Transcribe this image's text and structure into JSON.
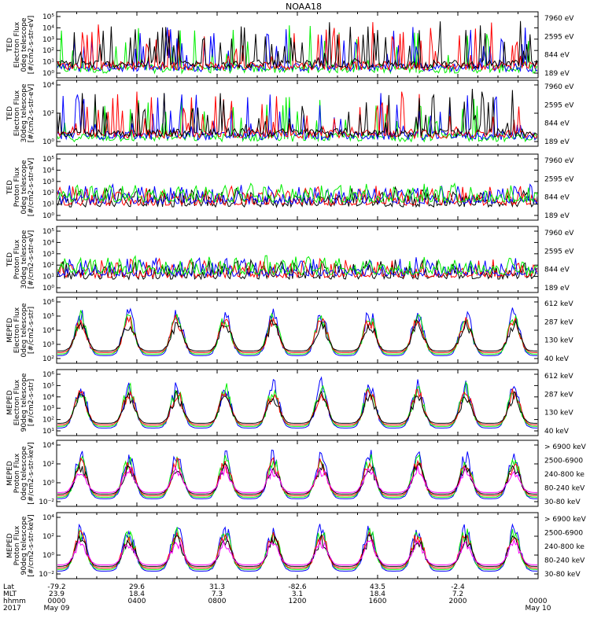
{
  "title": "NOAA18",
  "colors": {
    "black": "#000000",
    "red": "#ff0000",
    "green": "#00ee00",
    "blue": "#0000ff",
    "magenta": "#ff00ff"
  },
  "chart_data": [
    {
      "type": "line",
      "instrument": "TED",
      "ylabel": [
        "TED",
        "Electron Flux",
        "0deg telescope",
        "[#/cm2-s-str-eV]"
      ],
      "yticks": [
        "10⁰",
        "10¹",
        "10²",
        "10³",
        "10⁴",
        "10⁵"
      ],
      "legend": [
        {
          "label": "7960 eV",
          "color": "#000000"
        },
        {
          "label": "2595 eV",
          "color": "#ff0000"
        },
        {
          "label": "844 eV",
          "color": "#00ee00"
        },
        {
          "label": "189 eV",
          "color": "#0000ff"
        }
      ]
    },
    {
      "type": "line",
      "instrument": "TED",
      "ylabel": [
        "TED",
        "Electron Flux",
        "30deg telescope",
        "[#/cm2-s-str-eV]"
      ],
      "yticks": [
        "10⁰",
        "10²",
        "10⁴"
      ],
      "legend": [
        {
          "label": "7960 eV",
          "color": "#000000"
        },
        {
          "label": "2595 eV",
          "color": "#ff0000"
        },
        {
          "label": "844 eV",
          "color": "#00ee00"
        },
        {
          "label": "189 eV",
          "color": "#0000ff"
        }
      ]
    },
    {
      "type": "line",
      "instrument": "TED",
      "ylabel": [
        "TED",
        "Proton Flux",
        "0deg telescope",
        "[#/cm2-s-str-eV]"
      ],
      "yticks": [
        "10⁰",
        "10¹",
        "10²",
        "10³",
        "10⁴",
        "10⁵"
      ],
      "legend": [
        {
          "label": "7960 eV",
          "color": "#000000"
        },
        {
          "label": "2595 eV",
          "color": "#ff0000"
        },
        {
          "label": "844 eV",
          "color": "#00ee00"
        },
        {
          "label": "189 eV",
          "color": "#0000ff"
        }
      ]
    },
    {
      "type": "line",
      "instrument": "TED",
      "ylabel": [
        "TED",
        "Proton Flux",
        "30deg telescope",
        "[#/cm2-s-str-eV]"
      ],
      "yticks": [
        "10⁰",
        "10¹",
        "10²",
        "10³",
        "10⁴",
        "10⁵"
      ],
      "legend": [
        {
          "label": "7960 eV",
          "color": "#000000"
        },
        {
          "label": "2595 eV",
          "color": "#ff0000"
        },
        {
          "label": "844 eV",
          "color": "#00ee00"
        },
        {
          "label": "189 eV",
          "color": "#0000ff"
        }
      ]
    },
    {
      "type": "line",
      "instrument": "MEPED",
      "ylabel": [
        "MEPED",
        "Electron Flux",
        "0deg telescope",
        "[#/cm2-s-str]"
      ],
      "yticks": [
        "10²",
        "10³",
        "10⁴",
        "10⁵",
        "10⁶"
      ],
      "legend": [
        {
          "label": "612 keV",
          "color": "#000000"
        },
        {
          "label": "287 keV",
          "color": "#ff0000"
        },
        {
          "label": "130 keV",
          "color": "#00ee00"
        },
        {
          "label": "40 keV",
          "color": "#0000ff"
        }
      ]
    },
    {
      "type": "line",
      "instrument": "MEPED",
      "ylabel": [
        "MEPED",
        "Electron Flux",
        "90deg telescope",
        "[#/cm2-s-str]"
      ],
      "yticks": [
        "10¹",
        "10²",
        "10³",
        "10⁴",
        "10⁵",
        "10⁶"
      ],
      "legend": [
        {
          "label": "612 keV",
          "color": "#000000"
        },
        {
          "label": "287 keV",
          "color": "#ff0000"
        },
        {
          "label": "130 keV",
          "color": "#00ee00"
        },
        {
          "label": "40 keV",
          "color": "#0000ff"
        }
      ]
    },
    {
      "type": "line",
      "instrument": "MEPED",
      "ylabel": [
        "MEPED",
        "Proton Flux",
        "0deg telescope",
        "[#/cm2-s-str-keV]"
      ],
      "yticks": [
        "10⁻²",
        "10⁰",
        "10²",
        "10⁴"
      ],
      "legend": [
        {
          "label": "> 6900 keV",
          "color": "#ff00ff"
        },
        {
          "label": "2500-6900",
          "color": "#000000"
        },
        {
          "label": "240-800 ke",
          "color": "#ff0000"
        },
        {
          "label": "80-240 keV",
          "color": "#00ee00"
        },
        {
          "label": "30-80 keV",
          "color": "#0000ff"
        }
      ]
    },
    {
      "type": "line",
      "instrument": "MEPED",
      "ylabel": [
        "MEPED",
        "Proton Flux",
        "90deg telescope",
        "[#/cm2-s-str-keV]"
      ],
      "yticks": [
        "10⁻²",
        "10⁰",
        "10²",
        "10⁴"
      ],
      "legend": [
        {
          "label": "> 6900 keV",
          "color": "#ff00ff"
        },
        {
          "label": "2500-6900",
          "color": "#000000"
        },
        {
          "label": "240-800 ke",
          "color": "#ff0000"
        },
        {
          "label": "80-240 keV",
          "color": "#00ee00"
        },
        {
          "label": "30-80 keV",
          "color": "#0000ff"
        }
      ]
    }
  ],
  "xaxis": {
    "row_labels": [
      "Lat",
      "MLT",
      "hhmm",
      "2017"
    ],
    "ticks": [
      {
        "lat": "-79.2",
        "mlt": "23.9",
        "hhmm": "0000",
        "date": "May 09"
      },
      {
        "lat": "29.6",
        "mlt": "18.4",
        "hhmm": "0400",
        "date": ""
      },
      {
        "lat": "31.3",
        "mlt": "7.3",
        "hhmm": "0800",
        "date": ""
      },
      {
        "lat": "-82.6",
        "mlt": "3.1",
        "hhmm": "1200",
        "date": ""
      },
      {
        "lat": "43.5",
        "mlt": "18.4",
        "hhmm": "1600",
        "date": ""
      },
      {
        "lat": "-2.4",
        "mlt": "7.2",
        "hhmm": "2000",
        "date": ""
      },
      {
        "lat": "",
        "mlt": "",
        "hhmm": "0000",
        "date": "May 10"
      }
    ]
  }
}
